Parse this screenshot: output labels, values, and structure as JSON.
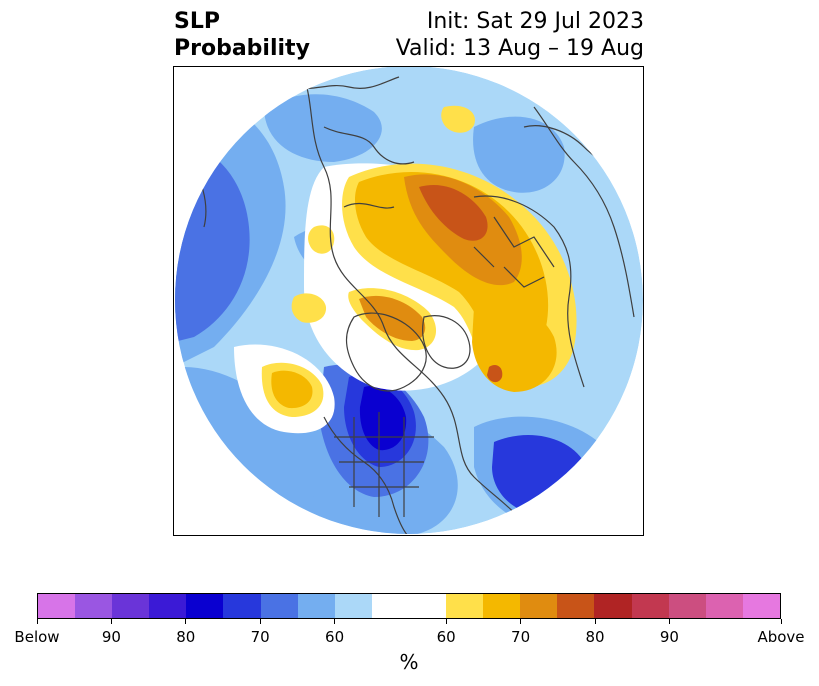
{
  "header": {
    "title_line1": "SLP",
    "title_line2": "Probability",
    "init": "Init: Sat 29 Jul 2023",
    "valid": "Valid: 13 Aug – 19 Aug"
  },
  "colorbar": {
    "unit": "%",
    "colors": [
      "#d774e8",
      "#9a56e2",
      "#6a34d8",
      "#3b1ad6",
      "#0a00d0",
      "#2738dc",
      "#4a72e4",
      "#74aef0",
      "#abd8f8",
      "#ffffff",
      "#ffe04a",
      "#f4b800",
      "#e08c10",
      "#c85418",
      "#b02424",
      "#c23850",
      "#cc4e80",
      "#dc62b0",
      "#e678e0"
    ],
    "tick_labels": [
      "Below",
      "90",
      "80",
      "70",
      "60",
      "60",
      "70",
      "80",
      "90",
      "Above"
    ]
  },
  "map": {
    "projection": "north-polar-stereographic",
    "features": [
      "coastlines",
      "country-borders",
      "us-state-borders"
    ]
  }
}
